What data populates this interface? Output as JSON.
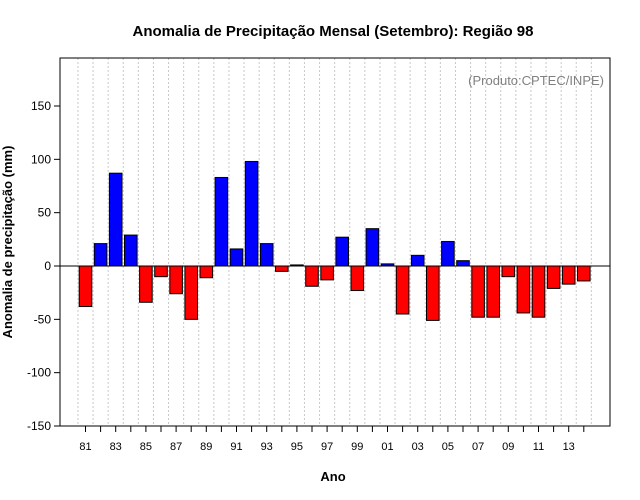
{
  "chart_data": {
    "type": "bar",
    "title": "Anomalia de Precipitação Mensal (Setembro): Região 98",
    "xlabel": "Ano",
    "ylabel": "Anomalia de precipitação (mm)",
    "credit": "(Produto:CPTEC/INPE)",
    "ylim": [
      -150,
      195
    ],
    "yticks": [
      -150,
      -100,
      -50,
      0,
      50,
      100,
      150
    ],
    "x": [
      1981,
      1982,
      1983,
      1984,
      1985,
      1986,
      1987,
      1988,
      1989,
      1990,
      1991,
      1992,
      1993,
      1994,
      1995,
      1996,
      1997,
      1998,
      1999,
      2000,
      2001,
      2002,
      2003,
      2004,
      2005,
      2006,
      2007,
      2008,
      2009,
      2010,
      2011,
      2012,
      2013,
      2014
    ],
    "xtick_labels": [
      "81",
      "83",
      "85",
      "87",
      "89",
      "91",
      "93",
      "95",
      "97",
      "99",
      "01",
      "03",
      "05",
      "07",
      "09",
      "11",
      "13"
    ],
    "xtick_years": [
      1981,
      1983,
      1985,
      1987,
      1989,
      1991,
      1993,
      1995,
      1997,
      1999,
      2001,
      2003,
      2005,
      2007,
      2009,
      2011,
      2013
    ],
    "values": [
      -38,
      21,
      87,
      29,
      -34,
      -10,
      -26,
      -50,
      -11,
      83,
      16,
      98,
      21,
      -5,
      1,
      -19,
      -13,
      27,
      -23,
      35,
      2,
      -45,
      10,
      -51,
      23,
      5,
      -48,
      -48,
      -10,
      -44,
      -48,
      -21,
      -17,
      -14
    ],
    "positive_color": "#0000ff",
    "negative_color": "#ff0000",
    "grid": "vertical-dotted"
  }
}
